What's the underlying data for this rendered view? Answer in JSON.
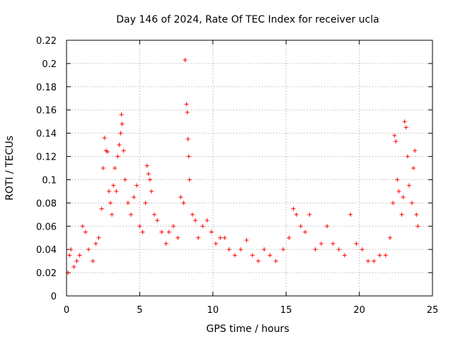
{
  "chart_data": {
    "type": "scatter",
    "title": "Day 146 of 2024, Rate Of TEC Index for receiver ucla",
    "xlabel": "GPS time / hours",
    "ylabel": "ROTI / TECUs",
    "xlim": [
      0,
      25
    ],
    "ylim": [
      0,
      0.22
    ],
    "xticks": [
      0,
      5,
      10,
      15,
      20,
      25
    ],
    "xtick_labels": [
      "0",
      "5",
      "10",
      "15",
      "20",
      "25"
    ],
    "yticks": [
      0,
      0.02,
      0.04,
      0.06,
      0.08,
      0.1,
      0.12,
      0.14,
      0.16,
      0.18,
      0.2,
      0.22
    ],
    "ytick_labels": [
      "0",
      "0.02",
      "0.04",
      "0.06",
      "0.08",
      "0.1",
      "0.12",
      "0.14",
      "0.16",
      "0.18",
      "0.2",
      "0.22"
    ],
    "grid": true,
    "marker": "+",
    "marker_color": "#ff0000",
    "series": [
      {
        "name": "ROTI",
        "points": [
          [
            0.1,
            0.02
          ],
          [
            0.2,
            0.035
          ],
          [
            0.3,
            0.04
          ],
          [
            0.5,
            0.025
          ],
          [
            0.7,
            0.03
          ],
          [
            0.9,
            0.035
          ],
          [
            1.1,
            0.06
          ],
          [
            1.3,
            0.055
          ],
          [
            1.5,
            0.04
          ],
          [
            1.8,
            0.03
          ],
          [
            2.0,
            0.045
          ],
          [
            2.2,
            0.05
          ],
          [
            2.4,
            0.075
          ],
          [
            2.5,
            0.11
          ],
          [
            2.6,
            0.136
          ],
          [
            2.7,
            0.125
          ],
          [
            2.8,
            0.124
          ],
          [
            2.9,
            0.09
          ],
          [
            3.0,
            0.08
          ],
          [
            3.1,
            0.07
          ],
          [
            3.2,
            0.095
          ],
          [
            3.3,
            0.11
          ],
          [
            3.4,
            0.09
          ],
          [
            3.5,
            0.12
          ],
          [
            3.6,
            0.13
          ],
          [
            3.7,
            0.14
          ],
          [
            3.75,
            0.156
          ],
          [
            3.8,
            0.148
          ],
          [
            3.9,
            0.125
          ],
          [
            4.0,
            0.1
          ],
          [
            4.2,
            0.08
          ],
          [
            4.4,
            0.07
          ],
          [
            4.6,
            0.085
          ],
          [
            4.8,
            0.095
          ],
          [
            5.0,
            0.06
          ],
          [
            5.2,
            0.055
          ],
          [
            5.4,
            0.08
          ],
          [
            5.5,
            0.112
          ],
          [
            5.6,
            0.105
          ],
          [
            5.7,
            0.1
          ],
          [
            5.8,
            0.09
          ],
          [
            6.0,
            0.07
          ],
          [
            6.2,
            0.065
          ],
          [
            6.5,
            0.055
          ],
          [
            6.8,
            0.045
          ],
          [
            7.0,
            0.055
          ],
          [
            7.3,
            0.06
          ],
          [
            7.6,
            0.05
          ],
          [
            7.8,
            0.085
          ],
          [
            8.0,
            0.08
          ],
          [
            8.1,
            0.203
          ],
          [
            8.2,
            0.165
          ],
          [
            8.25,
            0.158
          ],
          [
            8.3,
            0.135
          ],
          [
            8.35,
            0.12
          ],
          [
            8.4,
            0.1
          ],
          [
            8.6,
            0.07
          ],
          [
            8.8,
            0.065
          ],
          [
            9.0,
            0.05
          ],
          [
            9.3,
            0.06
          ],
          [
            9.6,
            0.065
          ],
          [
            9.9,
            0.055
          ],
          [
            10.2,
            0.045
          ],
          [
            10.5,
            0.05
          ],
          [
            10.8,
            0.05
          ],
          [
            11.1,
            0.04
          ],
          [
            11.5,
            0.035
          ],
          [
            11.9,
            0.04
          ],
          [
            12.3,
            0.048
          ],
          [
            12.7,
            0.035
          ],
          [
            13.1,
            0.03
          ],
          [
            13.5,
            0.04
          ],
          [
            13.9,
            0.035
          ],
          [
            14.3,
            0.03
          ],
          [
            14.8,
            0.04
          ],
          [
            15.2,
            0.05
          ],
          [
            15.5,
            0.075
          ],
          [
            15.7,
            0.07
          ],
          [
            16.0,
            0.06
          ],
          [
            16.3,
            0.055
          ],
          [
            16.6,
            0.07
          ],
          [
            17.0,
            0.04
          ],
          [
            17.4,
            0.045
          ],
          [
            17.8,
            0.06
          ],
          [
            18.2,
            0.045
          ],
          [
            18.6,
            0.04
          ],
          [
            19.0,
            0.035
          ],
          [
            19.4,
            0.07
          ],
          [
            19.8,
            0.045
          ],
          [
            20.2,
            0.04
          ],
          [
            20.6,
            0.03
          ],
          [
            21.0,
            0.03
          ],
          [
            21.4,
            0.035
          ],
          [
            21.8,
            0.035
          ],
          [
            22.1,
            0.05
          ],
          [
            22.3,
            0.08
          ],
          [
            22.4,
            0.138
          ],
          [
            22.5,
            0.133
          ],
          [
            22.6,
            0.1
          ],
          [
            22.7,
            0.09
          ],
          [
            22.9,
            0.07
          ],
          [
            23.0,
            0.085
          ],
          [
            23.1,
            0.15
          ],
          [
            23.2,
            0.145
          ],
          [
            23.3,
            0.12
          ],
          [
            23.4,
            0.095
          ],
          [
            23.6,
            0.08
          ],
          [
            23.7,
            0.11
          ],
          [
            23.8,
            0.125
          ],
          [
            23.9,
            0.07
          ],
          [
            24.0,
            0.06
          ]
        ]
      }
    ]
  }
}
